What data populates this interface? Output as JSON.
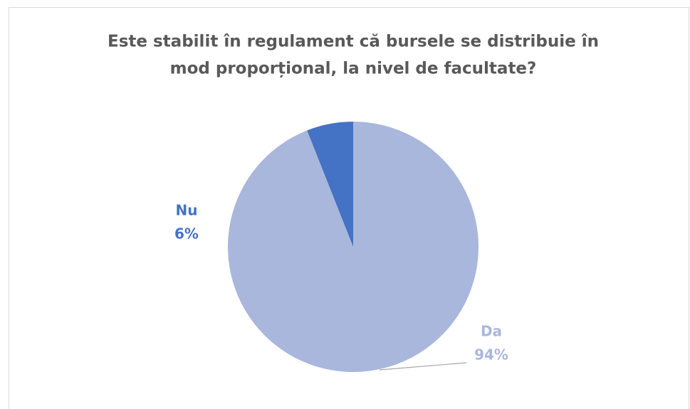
{
  "chart_data": {
    "type": "pie",
    "title": [
      "Este stabilit în regulament că bursele se distribuie în",
      "mod proporțional, la nivel de facultate?"
    ],
    "categories": [
      "Da",
      "Nu"
    ],
    "values": [
      94,
      6
    ],
    "value_labels": [
      "94%",
      "6%"
    ],
    "colors": [
      "#a9b7dc",
      "#4472c4"
    ]
  }
}
